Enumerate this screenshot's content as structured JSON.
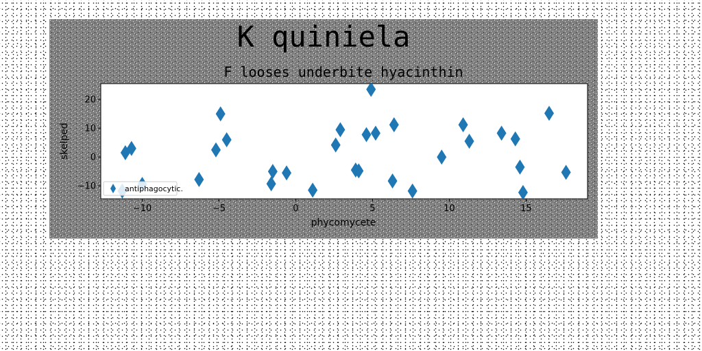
{
  "figure": {
    "suptitle": "K quiniela"
  },
  "chart_data": {
    "type": "scatter",
    "title": "F looses underbite hyacinthin",
    "xlabel": "phycomycete",
    "ylabel": "skelped",
    "xlim": [
      -12.7,
      19.0
    ],
    "ylim": [
      -14.5,
      25.5
    ],
    "xticks": [
      -10,
      -5,
      0,
      5,
      10,
      15
    ],
    "yticks": [
      -10,
      0,
      10,
      20
    ],
    "grid": false,
    "legend_position": "lower-left",
    "marker": "diamond",
    "series": [
      {
        "name": "antiphagocytic.",
        "color": "#1f77b4",
        "points": [
          [
            -11.3,
            -11.8
          ],
          [
            -11.1,
            1.5
          ],
          [
            -10.7,
            3.0
          ],
          [
            -10.0,
            -9.5
          ],
          [
            -6.3,
            -7.8
          ],
          [
            -5.2,
            2.5
          ],
          [
            -4.9,
            15.0
          ],
          [
            -4.5,
            6.0
          ],
          [
            -1.6,
            -9.3
          ],
          [
            -1.5,
            -5.0
          ],
          [
            -0.6,
            -5.5
          ],
          [
            1.1,
            -11.5
          ],
          [
            2.6,
            4.2
          ],
          [
            2.9,
            9.5
          ],
          [
            3.9,
            -4.5
          ],
          [
            4.1,
            -4.8
          ],
          [
            4.6,
            7.8
          ],
          [
            4.9,
            23.5
          ],
          [
            5.2,
            8.3
          ],
          [
            6.3,
            -8.3
          ],
          [
            6.4,
            11.2
          ],
          [
            7.6,
            -11.8
          ],
          [
            9.5,
            0.0
          ],
          [
            10.9,
            11.2
          ],
          [
            11.3,
            5.5
          ],
          [
            13.4,
            8.3
          ],
          [
            14.3,
            6.3
          ],
          [
            14.6,
            -3.5
          ],
          [
            14.8,
            -12.3
          ],
          [
            16.5,
            15.2
          ],
          [
            17.6,
            -5.3
          ]
        ]
      }
    ]
  }
}
